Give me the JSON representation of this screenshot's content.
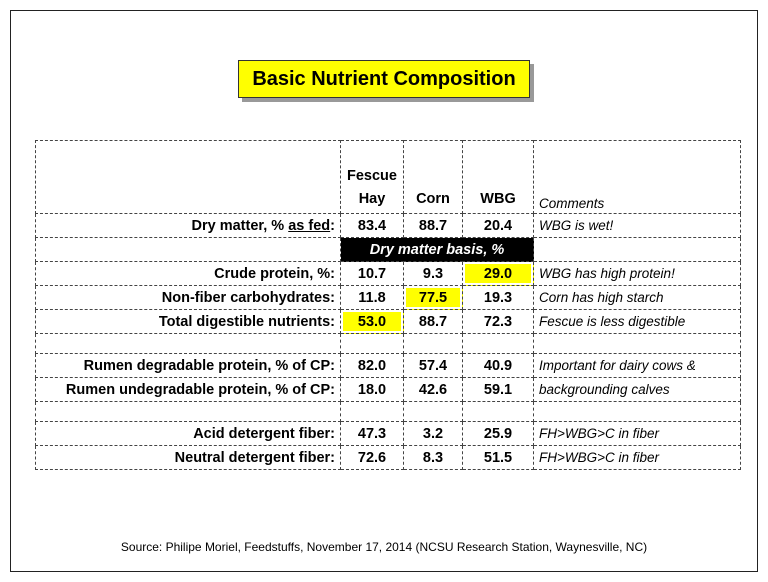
{
  "title": "Basic Nutrient Composition",
  "table": {
    "columns": [
      "Fescue Hay",
      "Corn",
      "WBG"
    ],
    "comments_header": "Comments",
    "dry_matter": {
      "label": [
        "Dry matter, % ",
        "as fed",
        ":"
      ],
      "values": [
        "83.4",
        "88.7",
        "20.4"
      ],
      "comment": "WBG is wet!"
    },
    "band": "Dry matter basis, %",
    "rows": [
      {
        "label": "Crude protein, %:",
        "values": [
          "10.7",
          "9.3",
          "29.0"
        ],
        "comment": "WBG has high protein!"
      },
      {
        "label": "Non-fiber carbohydrates:",
        "values": [
          "11.8",
          "77.5",
          "19.3"
        ],
        "comment": "Corn has high starch"
      },
      {
        "label": "Total digestible nutrients:",
        "values": [
          "53.0",
          "88.7",
          "72.3"
        ],
        "comment": "Fescue is less digestible"
      },
      {
        "label": "Rumen degradable protein, % of CP:",
        "values": [
          "82.0",
          "57.4",
          "40.9"
        ],
        "comment": "Important for dairy cows &"
      },
      {
        "label": "Rumen undegradable protein, % of CP:",
        "values": [
          "18.0",
          "42.6",
          "59.1"
        ],
        "comment": "backgrounding calves"
      },
      {
        "label": "Acid detergent fiber:",
        "values": [
          "47.3",
          "3.2",
          "25.9"
        ],
        "comment": "FH>WBG>C in fiber"
      },
      {
        "label": "Neutral detergent fiber:",
        "values": [
          "72.6",
          "8.3",
          "51.5"
        ],
        "comment": "FH>WBG>C in fiber"
      }
    ]
  },
  "source": "Source: Philipe Moriel, Feedstuffs, November 17, 2014 (NCSU Research Station, Waynesville, NC)"
}
